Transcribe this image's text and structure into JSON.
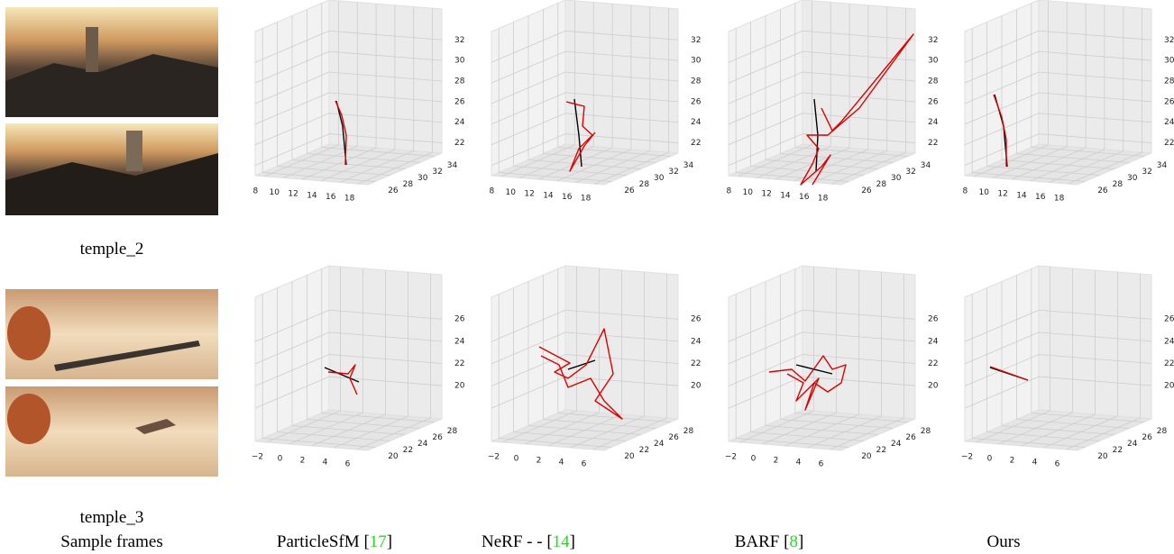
{
  "rows": [
    {
      "name": "temple_2",
      "axes": {
        "xlim": [
          7,
          19
        ],
        "ylim": [
          25,
          35
        ],
        "zlim": [
          21,
          35
        ],
        "xticks": [
          8,
          10,
          12,
          14,
          16,
          18
        ],
        "yticks": [
          26,
          28,
          30,
          32,
          34
        ],
        "zticks": [
          22,
          24,
          26,
          28,
          30,
          32
        ]
      }
    },
    {
      "name": "temple_3",
      "axes": {
        "xlim": [
          -3,
          7
        ],
        "ylim": [
          19,
          29
        ],
        "zlim": [
          17,
          30
        ],
        "xticks": [
          {
            "value": -2,
            "label": "−2"
          },
          0,
          2,
          4,
          6
        ],
        "yticks": [
          20,
          22,
          24,
          26,
          28
        ],
        "zticks": [
          20,
          22,
          24,
          26
        ]
      }
    }
  ],
  "columns": [
    {
      "label": [
        "Sample frames"
      ]
    },
    {
      "label": [
        "ParticleSfM [",
        "17",
        "]"
      ]
    },
    {
      "label": [
        "NeRF - - [",
        "14",
        "]"
      ]
    },
    {
      "label": [
        "BARF [",
        "8",
        "]"
      ]
    },
    {
      "label": [
        "Ours"
      ]
    }
  ]
}
